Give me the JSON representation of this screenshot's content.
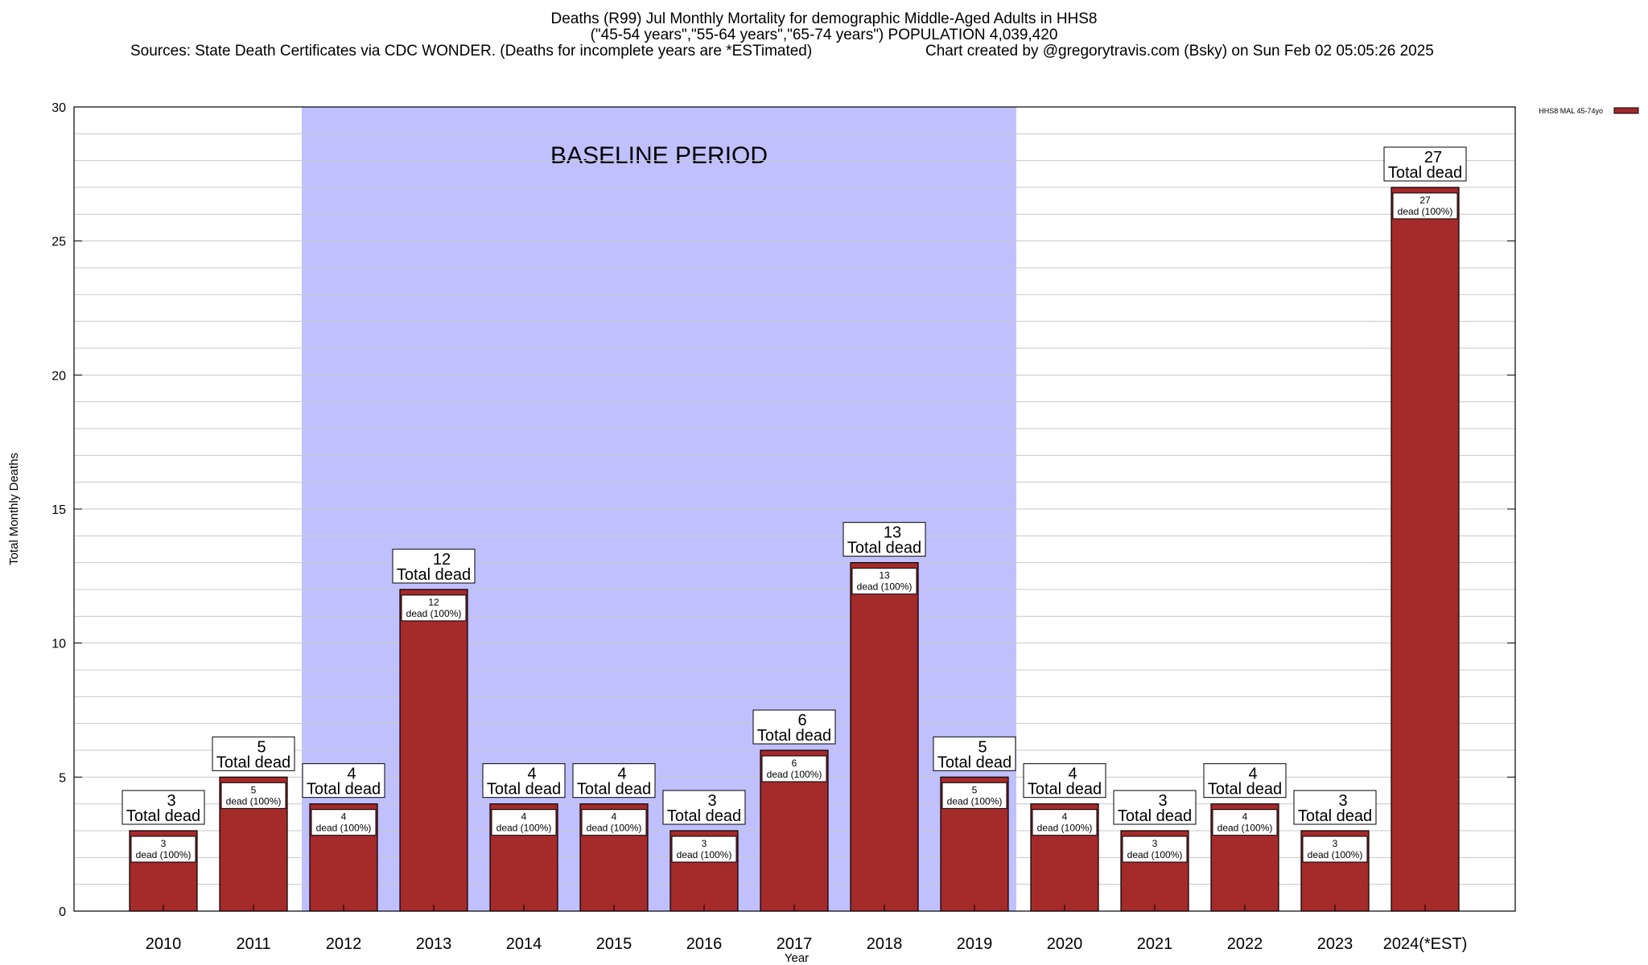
{
  "header": {
    "title_line1": "Deaths (R99) Jul Monthly Mortality for demographic Middle-Aged Adults in HHS8",
    "title_line2": "(\"45-54 years\",\"55-64 years\",\"65-74 years\") POPULATION 4,039,420",
    "sources": "Sources: State Death Certificates via CDC WONDER. (Deaths for incomplete years are *ESTimated)",
    "credit": "Chart created by @gregorytravis.com (Bsky) on Sun Feb 02 05:05:26 2025"
  },
  "chart_data": {
    "type": "bar",
    "categories": [
      "2010",
      "2011",
      "2012",
      "2013",
      "2014",
      "2015",
      "2016",
      "2017",
      "2018",
      "2019",
      "2020",
      "2021",
      "2022",
      "2023",
      "2024(*EST)"
    ],
    "series": [
      {
        "name": "HHS8 MAL 45-74yo",
        "values": [
          3,
          5,
          4,
          12,
          4,
          4,
          3,
          6,
          13,
          5,
          4,
          3,
          4,
          3,
          27
        ],
        "color": "#a52a2a"
      }
    ],
    "top_labels": {
      "values": [
        "3",
        "5",
        "4",
        "12",
        "4",
        "4",
        "3",
        "6",
        "13",
        "5",
        "4",
        "3",
        "4",
        "3",
        "27"
      ],
      "suffix": "Total dead"
    },
    "inner_labels": {
      "values": [
        "3",
        "5",
        "4",
        "12",
        "4",
        "4",
        "3",
        "6",
        "13",
        "5",
        "4",
        "3",
        "4",
        "3",
        "27"
      ],
      "suffix": "dead (100%)"
    },
    "ylim": [
      0,
      30
    ],
    "yticks": [
      "0",
      "5",
      "10",
      "15",
      "20",
      "25",
      "30"
    ],
    "ylabel": "Total Monthly Deaths",
    "xlabel": "Year",
    "grid": true,
    "legend_position": "top-right",
    "baseline": {
      "label": "BASELINE PERIOD",
      "start_category": "2012",
      "end_category": "2019",
      "color": "#c0c0ff"
    }
  }
}
